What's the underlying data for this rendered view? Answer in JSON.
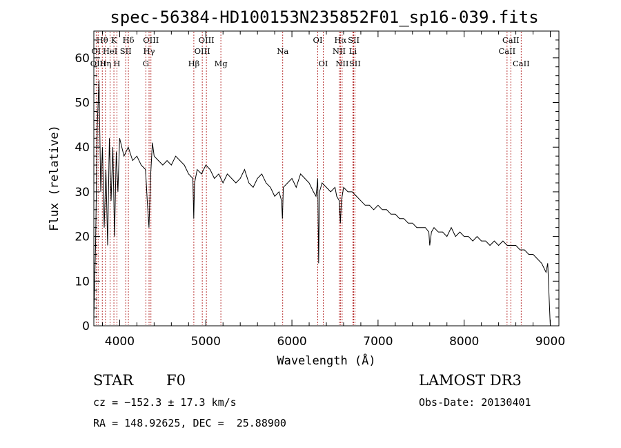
{
  "chart_data": {
    "type": "line",
    "title": "spec-56384-HD100153N235852F01_sp16-039.fits",
    "xlabel": "Wavelength (Å)",
    "ylabel": "Flux (relative)",
    "xlim": [
      3700,
      9100
    ],
    "ylim": [
      0,
      66
    ],
    "xticks": [
      4000,
      5000,
      6000,
      7000,
      8000,
      9000
    ],
    "yticks": [
      0,
      10,
      20,
      30,
      40,
      50,
      60
    ],
    "series": [
      {
        "name": "flux",
        "x": [
          3700,
          3720,
          3740,
          3760,
          3780,
          3800,
          3820,
          3840,
          3860,
          3880,
          3900,
          3920,
          3940,
          3960,
          3980,
          4000,
          4050,
          4100,
          4150,
          4200,
          4250,
          4300,
          4320,
          4340,
          4360,
          4380,
          4400,
          4450,
          4500,
          4550,
          4600,
          4650,
          4700,
          4750,
          4800,
          4850,
          4860,
          4870,
          4900,
          4950,
          5000,
          5050,
          5100,
          5150,
          5200,
          5250,
          5300,
          5350,
          5400,
          5450,
          5500,
          5550,
          5600,
          5650,
          5700,
          5750,
          5800,
          5850,
          5880,
          5890,
          5900,
          5950,
          6000,
          6050,
          6100,
          6150,
          6200,
          6250,
          6280,
          6300,
          6310,
          6320,
          6350,
          6400,
          6450,
          6500,
          6520,
          6550,
          6563,
          6575,
          6600,
          6650,
          6700,
          6750,
          6800,
          6850,
          6900,
          6950,
          7000,
          7050,
          7100,
          7150,
          7200,
          7250,
          7300,
          7350,
          7400,
          7450,
          7500,
          7550,
          7590,
          7600,
          7620,
          7650,
          7700,
          7750,
          7800,
          7850,
          7900,
          7950,
          8000,
          8050,
          8100,
          8150,
          8200,
          8250,
          8300,
          8350,
          8400,
          8450,
          8500,
          8550,
          8600,
          8650,
          8700,
          8750,
          8800,
          8850,
          8900,
          8950,
          8970,
          9000
        ],
        "values": [
          2,
          18,
          45,
          55,
          30,
          40,
          22,
          35,
          18,
          42,
          28,
          40,
          20,
          39,
          30,
          42,
          38,
          40,
          37,
          38,
          36,
          35,
          28,
          22,
          34,
          41,
          38,
          37,
          36,
          37,
          36,
          38,
          37,
          36,
          34,
          33,
          24,
          32,
          35,
          34,
          36,
          35,
          33,
          34,
          32,
          34,
          33,
          32,
          33,
          35,
          32,
          31,
          33,
          34,
          32,
          31,
          29,
          30,
          28,
          24,
          31,
          32,
          33,
          31,
          34,
          33,
          32,
          30,
          29,
          33,
          14,
          30,
          32,
          31,
          30,
          31,
          29,
          28,
          23,
          28,
          31,
          30,
          30,
          29,
          28,
          27,
          27,
          26,
          27,
          26,
          26,
          25,
          25,
          24,
          24,
          23,
          23,
          22,
          22,
          22,
          21,
          18,
          21,
          22,
          21,
          21,
          20,
          22,
          20,
          21,
          20,
          20,
          19,
          20,
          19,
          19,
          18,
          19,
          18,
          19,
          18,
          18,
          18,
          17,
          17,
          16,
          16,
          15,
          14,
          12,
          14,
          0
        ]
      }
    ],
    "lines": {
      "row1": [
        {
          "label": "Hθ",
          "wl": 3798
        },
        {
          "label": "K",
          "wl": 3933
        },
        {
          "label": "Hδ",
          "wl": 4101
        },
        {
          "label": "OIII",
          "wl": 4363
        },
        {
          "label": "OIII",
          "wl": 5007
        },
        {
          "label": "OI",
          "wl": 6300
        },
        {
          "label": "Hα",
          "wl": 6563
        },
        {
          "label": "SII",
          "wl": 6717
        },
        {
          "label": "CaII",
          "wl": 8542
        }
      ],
      "row2": [
        {
          "label": "OI",
          "wl": 3727
        },
        {
          "label": "HeI",
          "wl": 3889
        },
        {
          "label": "SII",
          "wl": 4070
        },
        {
          "label": "Hγ",
          "wl": 4341
        },
        {
          "label": "OIII",
          "wl": 4959
        },
        {
          "label": "Na",
          "wl": 5893
        },
        {
          "label": "NII",
          "wl": 6548
        },
        {
          "label": "Li",
          "wl": 6708
        },
        {
          "label": "CaII",
          "wl": 8498
        }
      ],
      "row3": [
        {
          "label": "OIII",
          "wl": 3750
        },
        {
          "label": "Hη",
          "wl": 3835
        },
        {
          "label": "H",
          "wl": 3968
        },
        {
          "label": "G",
          "wl": 4304
        },
        {
          "label": "Hβ",
          "wl": 4861
        },
        {
          "label": "Mg",
          "wl": 5175
        },
        {
          "label": "OI",
          "wl": 6364
        },
        {
          "label": "NII",
          "wl": 6583
        },
        {
          "label": "SII",
          "wl": 6731
        },
        {
          "label": "CaII",
          "wl": 8662
        }
      ]
    }
  },
  "info": {
    "class": "STAR",
    "subclass": "F0",
    "survey": "LAMOST DR3",
    "cz": "cz = −152.3 ± 17.3 km/s",
    "obs_date": "Obs-Date: 20130401",
    "coords": "RA = 148.92625, DEC =  25.88900"
  }
}
